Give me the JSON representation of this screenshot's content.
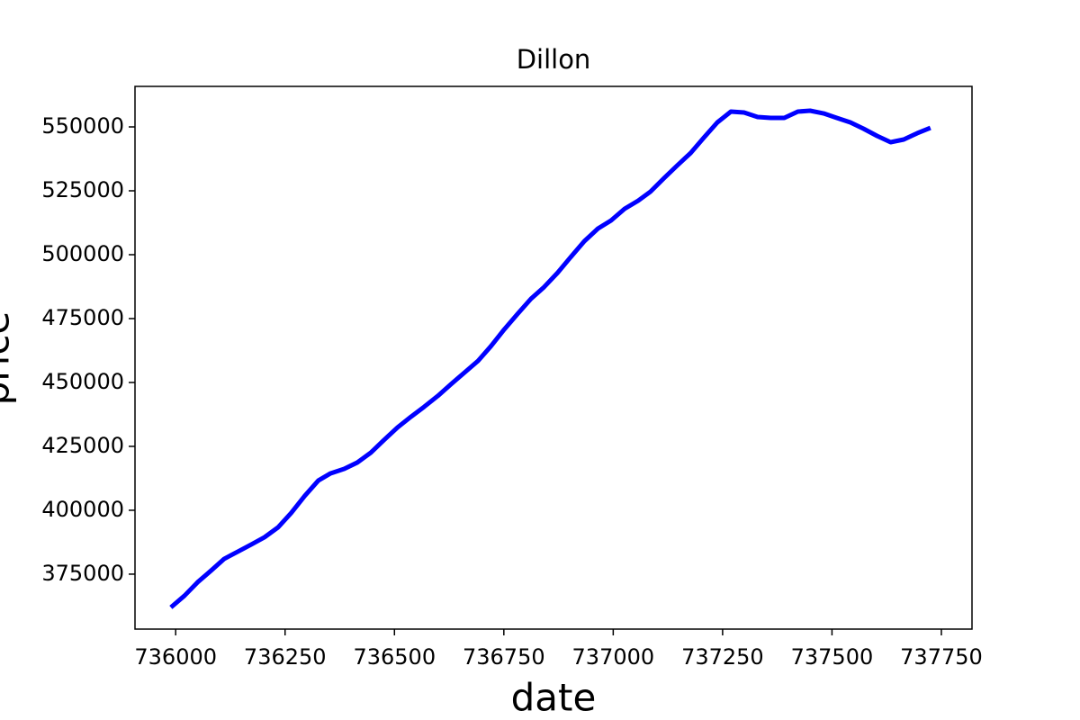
{
  "chart_data": {
    "type": "line",
    "title": "Dillon",
    "x_label": "date",
    "y_label": "price",
    "x": [
      735989,
      736020,
      736050,
      736081,
      736111,
      736142,
      736173,
      736203,
      736234,
      736264,
      736295,
      736326,
      736354,
      736385,
      736415,
      736446,
      736476,
      736507,
      736538,
      736568,
      736599,
      736629,
      736660,
      736691,
      736720,
      736751,
      736781,
      736812,
      736842,
      736873,
      736904,
      736934,
      736965,
      736995,
      737026,
      737057,
      737085,
      737116,
      737146,
      737177,
      737207,
      737238,
      737269,
      737299,
      737330,
      737360,
      737391,
      737422,
      737450,
      737481,
      737511,
      737542,
      737572,
      737603,
      737634,
      737664,
      737695,
      737725
    ],
    "series": [
      {
        "name": "price",
        "color": "#0000ff",
        "values": [
          362000,
          366550,
          371830,
          376410,
          381000,
          383810,
          386620,
          389440,
          393310,
          398950,
          405640,
          411620,
          414440,
          416200,
          418670,
          422540,
          427470,
          432400,
          436620,
          440500,
          444720,
          449300,
          453880,
          458450,
          464090,
          470780,
          476760,
          482750,
          487330,
          492960,
          499300,
          505280,
          510210,
          513380,
          517960,
          521130,
          524650,
          529930,
          534860,
          539790,
          545770,
          551760,
          555990,
          555630,
          553870,
          553520,
          553520,
          555990,
          556340,
          555280,
          553520,
          551760,
          549300,
          546480,
          544020,
          545070,
          547540,
          549650
        ]
      }
    ],
    "xlim": [
      735907,
      737820
    ],
    "ylim": [
      353500,
      565850
    ],
    "xticks": [
      736000,
      736250,
      736500,
      736750,
      737000,
      737250,
      737500,
      737750
    ],
    "yticks": [
      375000,
      400000,
      425000,
      450000,
      475000,
      500000,
      525000,
      550000
    ],
    "grid": false
  }
}
